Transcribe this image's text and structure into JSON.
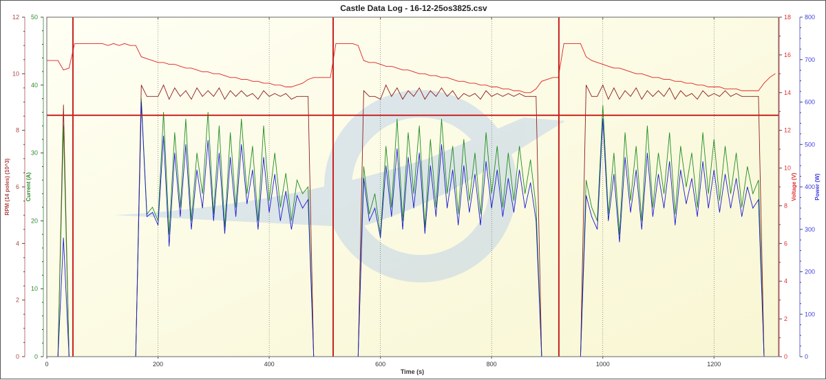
{
  "chart_data": {
    "type": "line",
    "title": "Castle Data Log - 16-12-25os3825.csv",
    "xlabel": "Time (s)",
    "xlim": [
      0,
      1316
    ],
    "x_ticks": [
      0,
      200,
      400,
      600,
      800,
      1000,
      1200
    ],
    "grid": "vertical dotted lines at x ticks",
    "axes": {
      "rpm": {
        "label": "RPM (14 poles) (10^3)",
        "side": "left-outer",
        "ylim": [
          0,
          12
        ],
        "ticks": [
          0,
          2,
          4,
          6,
          8,
          10,
          12
        ],
        "color": "#b04848"
      },
      "current": {
        "label": "Current (A)",
        "side": "left-inner",
        "ylim": [
          0,
          50
        ],
        "ticks": [
          0,
          10,
          20,
          30,
          40,
          50
        ],
        "color": "#2e8b2e"
      },
      "voltage": {
        "label": "Voltage (V)",
        "side": "right-inner",
        "ylim": [
          0,
          18
        ],
        "ticks": [
          0,
          2,
          4,
          6,
          8,
          10,
          12,
          14,
          16,
          18
        ],
        "color": "#e03030"
      },
      "power": {
        "label": "Power (W)",
        "side": "right-outer",
        "ylim": [
          0,
          800
        ],
        "ticks": [
          0,
          100,
          200,
          300,
          400,
          500,
          600,
          700,
          800
        ],
        "color": "#4040e0"
      }
    },
    "x": [
      0,
      10,
      20,
      30,
      40,
      50,
      60,
      70,
      80,
      90,
      100,
      110,
      120,
      130,
      140,
      150,
      160,
      170,
      180,
      190,
      200,
      210,
      220,
      230,
      240,
      250,
      260,
      270,
      280,
      290,
      300,
      310,
      320,
      330,
      340,
      350,
      360,
      370,
      380,
      390,
      400,
      410,
      420,
      430,
      440,
      450,
      460,
      470,
      480,
      490,
      500,
      510,
      520,
      530,
      540,
      550,
      560,
      570,
      580,
      590,
      600,
      610,
      620,
      630,
      640,
      650,
      660,
      670,
      680,
      690,
      700,
      710,
      720,
      730,
      740,
      750,
      760,
      770,
      780,
      790,
      800,
      810,
      820,
      830,
      840,
      850,
      860,
      870,
      880,
      890,
      900,
      910,
      920,
      930,
      940,
      950,
      960,
      970,
      980,
      990,
      1000,
      1010,
      1020,
      1030,
      1040,
      1050,
      1060,
      1070,
      1080,
      1090,
      1100,
      1110,
      1120,
      1130,
      1140,
      1150,
      1160,
      1170,
      1180,
      1190,
      1200,
      1210,
      1220,
      1230,
      1240,
      1250,
      1260,
      1270,
      1280,
      1290,
      1300,
      1310
    ],
    "series": [
      {
        "axis": "voltage",
        "color": "#e02020",
        "values": [
          15.7,
          15.7,
          15.7,
          15.2,
          15.3,
          16.6,
          16.6,
          16.6,
          16.6,
          16.6,
          16.6,
          16.5,
          16.6,
          16.5,
          16.6,
          16.5,
          16.5,
          15.9,
          15.8,
          15.7,
          15.6,
          15.6,
          15.5,
          15.5,
          15.4,
          15.3,
          15.3,
          15.2,
          15.1,
          15.1,
          15.0,
          15.0,
          14.9,
          14.8,
          14.8,
          14.7,
          14.7,
          14.6,
          14.6,
          14.5,
          14.5,
          14.4,
          14.4,
          14.3,
          14.3,
          14.4,
          14.5,
          14.7,
          14.8,
          14.8,
          14.8,
          14.8,
          16.6,
          16.6,
          16.6,
          16.6,
          16.5,
          15.7,
          15.6,
          15.6,
          15.5,
          15.4,
          15.4,
          15.3,
          15.2,
          15.2,
          15.1,
          15.0,
          15.0,
          14.9,
          14.9,
          14.8,
          14.8,
          14.7,
          14.6,
          14.6,
          14.5,
          14.5,
          14.4,
          14.4,
          14.3,
          14.3,
          14.2,
          14.2,
          14.1,
          14.1,
          14.0,
          14.0,
          14.2,
          14.6,
          14.7,
          14.8,
          14.8,
          16.6,
          16.6,
          16.6,
          16.6,
          15.9,
          15.7,
          15.6,
          15.5,
          15.4,
          15.3,
          15.3,
          15.2,
          15.1,
          15.0,
          15.0,
          14.9,
          14.8,
          14.8,
          14.7,
          14.7,
          14.6,
          14.6,
          14.5,
          14.5,
          14.4,
          14.4,
          14.3,
          14.3,
          14.3,
          14.2,
          14.2,
          14.2,
          14.1,
          14.1,
          14.1,
          14.1,
          14.5,
          14.8,
          15.0
        ]
      },
      {
        "axis": "rpm",
        "color": "#8b1a1a",
        "values": [
          0,
          0,
          0,
          8.9,
          0,
          0,
          0,
          0,
          0,
          0,
          0,
          0,
          0,
          0,
          0,
          0,
          0,
          9.6,
          9.2,
          9.2,
          9.2,
          9.6,
          9.1,
          9.5,
          9.2,
          9.4,
          9.1,
          9.5,
          9.2,
          9.4,
          9.2,
          9.5,
          9.1,
          9.4,
          9.2,
          9.4,
          9.2,
          9.3,
          9.1,
          9.4,
          9.2,
          9.3,
          9.2,
          9.3,
          9.1,
          9.2,
          9.2,
          9.2,
          0,
          0,
          0,
          0,
          0,
          0,
          0,
          0,
          0,
          9.4,
          9.2,
          9.2,
          9.1,
          9.6,
          9.2,
          9.5,
          9.1,
          9.4,
          9.2,
          9.5,
          9.1,
          9.4,
          9.2,
          9.5,
          9.2,
          9.4,
          9.1,
          9.3,
          9.2,
          9.3,
          9.1,
          9.4,
          9.2,
          9.3,
          9.2,
          9.3,
          9.2,
          9.3,
          9.2,
          9.2,
          9.2,
          0,
          0,
          0,
          0,
          0,
          0,
          0,
          0,
          9.6,
          9.2,
          9.2,
          9.6,
          9.1,
          9.5,
          9.1,
          9.4,
          9.2,
          9.5,
          9.1,
          9.4,
          9.2,
          9.4,
          9.2,
          9.5,
          9.1,
          9.4,
          9.2,
          9.3,
          9.1,
          9.4,
          9.2,
          9.3,
          9.2,
          9.4,
          9.2,
          9.3,
          9.2,
          9.2,
          9.2,
          9.2,
          0,
          0,
          0
        ]
      },
      {
        "axis": "current",
        "color": "#1e8c1e",
        "values": [
          0,
          0,
          0,
          34,
          0,
          0,
          0,
          0,
          0,
          0,
          0,
          0,
          0,
          0,
          0,
          0,
          0,
          38,
          21,
          22,
          20,
          36,
          18,
          33,
          22,
          35,
          20,
          30,
          24,
          36,
          21,
          34,
          19,
          33,
          22,
          35,
          24,
          31,
          20,
          34,
          23,
          30,
          22,
          27,
          20,
          26,
          24,
          25,
          0,
          0,
          0,
          0,
          0,
          0,
          0,
          0,
          0,
          28,
          21,
          24,
          18,
          31,
          22,
          35,
          20,
          33,
          24,
          34,
          19,
          32,
          22,
          35,
          24,
          31,
          21,
          32,
          23,
          30,
          21,
          33,
          24,
          31,
          22,
          30,
          23,
          31,
          24,
          29,
          22,
          0,
          0,
          0,
          0,
          0,
          0,
          0,
          0,
          26,
          22,
          20,
          37,
          21,
          30,
          18,
          33,
          23,
          31,
          20,
          34,
          22,
          30,
          24,
          33,
          21,
          31,
          25,
          30,
          22,
          33,
          24,
          32,
          23,
          31,
          24,
          30,
          22,
          28,
          24,
          26,
          0,
          0,
          0
        ]
      },
      {
        "axis": "power",
        "color": "#1a1ad0",
        "values": [
          0,
          0,
          0,
          280,
          0,
          0,
          0,
          0,
          0,
          0,
          0,
          0,
          0,
          0,
          0,
          0,
          0,
          600,
          330,
          340,
          310,
          520,
          260,
          480,
          330,
          500,
          300,
          440,
          350,
          510,
          320,
          480,
          290,
          470,
          330,
          500,
          360,
          440,
          300,
          470,
          340,
          430,
          320,
          390,
          300,
          380,
          350,
          370,
          0,
          0,
          0,
          0,
          0,
          0,
          0,
          0,
          0,
          420,
          320,
          350,
          280,
          450,
          330,
          490,
          300,
          470,
          350,
          480,
          290,
          450,
          330,
          500,
          350,
          440,
          310,
          450,
          340,
          430,
          310,
          460,
          350,
          440,
          330,
          420,
          340,
          440,
          350,
          410,
          320,
          0,
          0,
          0,
          0,
          0,
          0,
          0,
          0,
          380,
          330,
          300,
          560,
          320,
          430,
          270,
          470,
          340,
          440,
          300,
          480,
          330,
          430,
          350,
          460,
          310,
          440,
          360,
          420,
          330,
          460,
          350,
          440,
          340,
          430,
          350,
          420,
          330,
          400,
          350,
          370,
          0,
          0,
          0
        ]
      }
    ],
    "markers": {
      "vertical_times": [
        47,
        515,
        921
      ],
      "horizontal_voltage": 12.8,
      "color": "#c82020"
    }
  }
}
